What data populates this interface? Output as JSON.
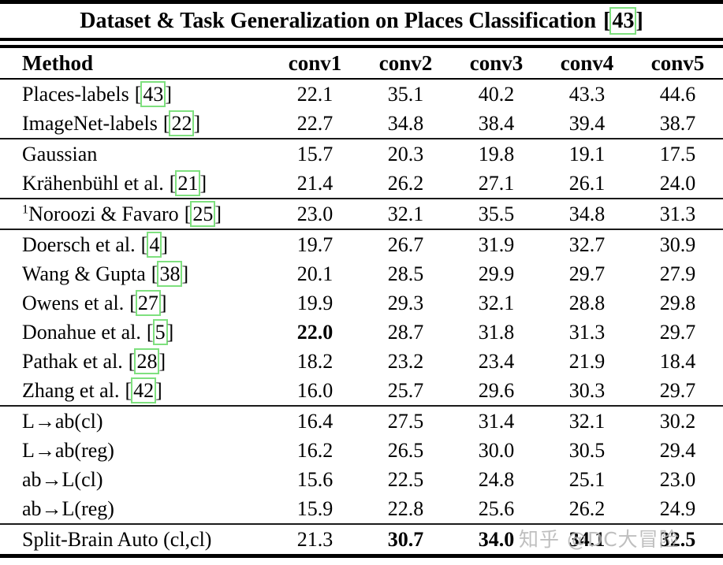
{
  "title": {
    "text": "Dataset & Task Generalization on Places Classification",
    "cite": "43"
  },
  "watermark": "知乎 @DC大冒险",
  "colors": {
    "cite_box_green": "#7ee07e",
    "text": "#000000",
    "watermark_gray": "#b5b5b5"
  },
  "table": {
    "columns": [
      "Method",
      "conv1",
      "conv2",
      "conv3",
      "conv4",
      "conv5"
    ],
    "rows": [
      {
        "method": "Places-labels",
        "sup": "",
        "cite": "43",
        "values": [
          "22.1",
          "35.1",
          "40.2",
          "43.3",
          "44.6"
        ],
        "bold": [
          false,
          false,
          false,
          false,
          false
        ],
        "sep_above": false
      },
      {
        "method": "ImageNet-labels",
        "sup": "",
        "cite": "22",
        "values": [
          "22.7",
          "34.8",
          "38.4",
          "39.4",
          "38.7"
        ],
        "bold": [
          false,
          false,
          false,
          false,
          false
        ],
        "sep_above": false
      },
      {
        "method": "Gaussian",
        "sup": "",
        "cite": "",
        "values": [
          "15.7",
          "20.3",
          "19.8",
          "19.1",
          "17.5"
        ],
        "bold": [
          false,
          false,
          false,
          false,
          false
        ],
        "sep_above": true
      },
      {
        "method": "Krähenbühl et al.",
        "sup": "",
        "cite": "21",
        "values": [
          "21.4",
          "26.2",
          "27.1",
          "26.1",
          "24.0"
        ],
        "bold": [
          false,
          false,
          false,
          false,
          false
        ],
        "sep_above": false
      },
      {
        "method": "Noroozi & Favaro",
        "sup": "1",
        "cite": "25",
        "values": [
          "23.0",
          "32.1",
          "35.5",
          "34.8",
          "31.3"
        ],
        "bold": [
          false,
          false,
          false,
          false,
          false
        ],
        "sep_above": true
      },
      {
        "method": "Doersch et al.",
        "sup": "",
        "cite": "4",
        "values": [
          "19.7",
          "26.7",
          "31.9",
          "32.7",
          "30.9"
        ],
        "bold": [
          false,
          false,
          false,
          false,
          false
        ],
        "sep_above": true
      },
      {
        "method": "Wang & Gupta",
        "sup": "",
        "cite": "38",
        "values": [
          "20.1",
          "28.5",
          "29.9",
          "29.7",
          "27.9"
        ],
        "bold": [
          false,
          false,
          false,
          false,
          false
        ],
        "sep_above": false
      },
      {
        "method": "Owens et al.",
        "sup": "",
        "cite": "27",
        "values": [
          "19.9",
          "29.3",
          "32.1",
          "28.8",
          "29.8"
        ],
        "bold": [
          false,
          false,
          false,
          false,
          false
        ],
        "sep_above": false
      },
      {
        "method": "Donahue et al.",
        "sup": "",
        "cite": "5",
        "values": [
          "22.0",
          "28.7",
          "31.8",
          "31.3",
          "29.7"
        ],
        "bold": [
          true,
          false,
          false,
          false,
          false
        ],
        "sep_above": false
      },
      {
        "method": "Pathak et al.",
        "sup": "",
        "cite": "28",
        "values": [
          "18.2",
          "23.2",
          "23.4",
          "21.9",
          "18.4"
        ],
        "bold": [
          false,
          false,
          false,
          false,
          false
        ],
        "sep_above": false
      },
      {
        "method": "Zhang et al.",
        "sup": "",
        "cite": "42",
        "values": [
          "16.0",
          "25.7",
          "29.6",
          "30.3",
          "29.7"
        ],
        "bold": [
          false,
          false,
          false,
          false,
          false
        ],
        "sep_above": false
      },
      {
        "method": "L→ab(cl)",
        "sup": "",
        "cite": "",
        "values": [
          "16.4",
          "27.5",
          "31.4",
          "32.1",
          "30.2"
        ],
        "bold": [
          false,
          false,
          false,
          false,
          false
        ],
        "sep_above": true
      },
      {
        "method": "L→ab(reg)",
        "sup": "",
        "cite": "",
        "values": [
          "16.2",
          "26.5",
          "30.0",
          "30.5",
          "29.4"
        ],
        "bold": [
          false,
          false,
          false,
          false,
          false
        ],
        "sep_above": false
      },
      {
        "method": "ab→L(cl)",
        "sup": "",
        "cite": "",
        "values": [
          "15.6",
          "22.5",
          "24.8",
          "25.1",
          "23.0"
        ],
        "bold": [
          false,
          false,
          false,
          false,
          false
        ],
        "sep_above": false
      },
      {
        "method": "ab→L(reg)",
        "sup": "",
        "cite": "",
        "values": [
          "15.9",
          "22.8",
          "25.6",
          "26.2",
          "24.9"
        ],
        "bold": [
          false,
          false,
          false,
          false,
          false
        ],
        "sep_above": false
      },
      {
        "method": "Split-Brain Auto (cl,cl)",
        "sup": "",
        "cite": "",
        "values": [
          "21.3",
          "30.7",
          "34.0",
          "34.1",
          "32.5"
        ],
        "bold": [
          false,
          true,
          true,
          true,
          true
        ],
        "sep_above": true
      }
    ]
  }
}
